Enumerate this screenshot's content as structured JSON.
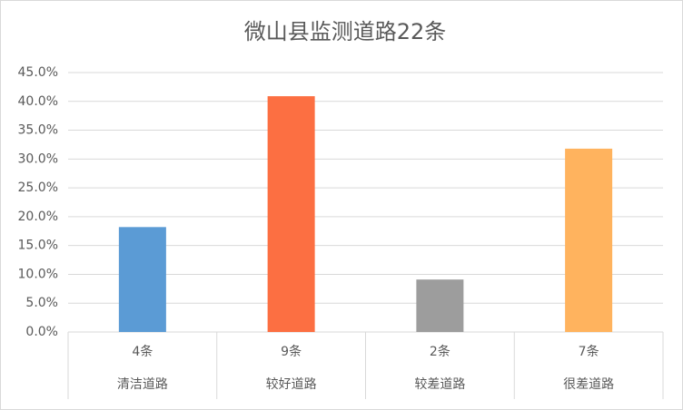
{
  "chart_data": {
    "type": "bar",
    "title": "微山县监测道路22条",
    "count_labels": [
      "4条",
      "9条",
      "2条",
      "7条"
    ],
    "categories": [
      "清洁道路",
      "较好道路",
      "较差道路",
      "很差道路"
    ],
    "values": [
      18.2,
      40.9,
      9.1,
      31.8
    ],
    "colors": [
      "#5b9bd5",
      "#fc6f42",
      "#9d9d9d",
      "#ffb35e"
    ],
    "ylim": [
      0,
      45
    ],
    "yticks": [
      {
        "value": 0,
        "label": "0.0%"
      },
      {
        "value": 5,
        "label": "5.0%"
      },
      {
        "value": 10,
        "label": "10.0%"
      },
      {
        "value": 15,
        "label": "15.0%"
      },
      {
        "value": 20,
        "label": "20.0%"
      },
      {
        "value": 25,
        "label": "25.0%"
      },
      {
        "value": 30,
        "label": "30.0%"
      },
      {
        "value": 35,
        "label": "35.0%"
      },
      {
        "value": 40,
        "label": "40.0%"
      },
      {
        "value": 45,
        "label": "45.0%"
      }
    ],
    "grid": true
  }
}
